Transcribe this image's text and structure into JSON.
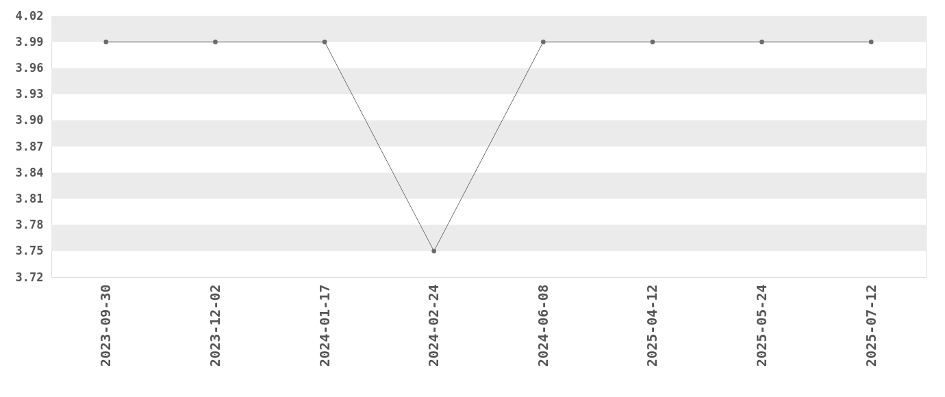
{
  "chart_data": {
    "type": "line",
    "categories": [
      "2023-09-30",
      "2023-12-02",
      "2024-01-17",
      "2024-02-24",
      "2024-06-08",
      "2025-04-12",
      "2025-05-24",
      "2025-07-12"
    ],
    "series": [
      {
        "color": "#6b6b6b",
        "values": [
          3.99,
          3.99,
          3.99,
          3.75,
          3.99,
          3.99,
          3.99,
          3.99
        ]
      }
    ],
    "ylim": [
      3.72,
      4.02
    ],
    "yticks": [
      3.72,
      3.75,
      3.78,
      3.81,
      3.84,
      3.87,
      {
        "value": 3.9,
        "label": "3.90"
      },
      3.93,
      3.96,
      3.99,
      4.02
    ],
    "bands": [
      {
        "axis": "y",
        "from": 3.99,
        "to": 4.02,
        "color": "#ebebeb"
      },
      {
        "axis": "y",
        "from": 3.93,
        "to": 3.96,
        "color": "#ebebeb"
      },
      {
        "axis": "y",
        "from": 3.87,
        "to": 3.9,
        "color": "#ebebeb"
      },
      {
        "axis": "y",
        "from": 3.81,
        "to": 3.84,
        "color": "#ebebeb"
      },
      {
        "axis": "y",
        "from": 3.75,
        "to": 3.78,
        "color": "#ebebeb"
      }
    ],
    "marker": "circle",
    "line_style": "solid"
  }
}
